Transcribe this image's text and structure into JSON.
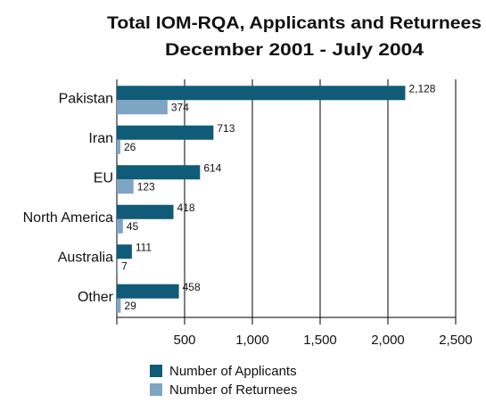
{
  "chart_data": {
    "type": "hbar",
    "title": "Total IOM-RQA, Applicants and Returnees",
    "subtitle": "December 2001 - July 2004",
    "categories": [
      "Pakistan",
      "Iran",
      "EU",
      "North America",
      "Australia",
      "Other"
    ],
    "series": [
      {
        "name": "Number of Applicants",
        "color": "#0f5b78",
        "values": [
          2128,
          713,
          614,
          418,
          111,
          458
        ],
        "value_labels": [
          "2,128",
          "713",
          "614",
          "418",
          "111",
          "458"
        ]
      },
      {
        "name": "Number of Returnees",
        "color": "#7ea5c3",
        "values": [
          374,
          26,
          123,
          45,
          7,
          29
        ]
      }
    ],
    "xlim": [
      0,
      2500
    ],
    "xticks": [
      {
        "value": 500,
        "label": "500"
      },
      {
        "value": 1000,
        "label": "1,000"
      },
      {
        "value": 1500,
        "label": "1,500"
      },
      {
        "value": 2000,
        "label": "2,000"
      },
      {
        "value": 2500,
        "label": "2,500"
      }
    ],
    "grid": true
  }
}
